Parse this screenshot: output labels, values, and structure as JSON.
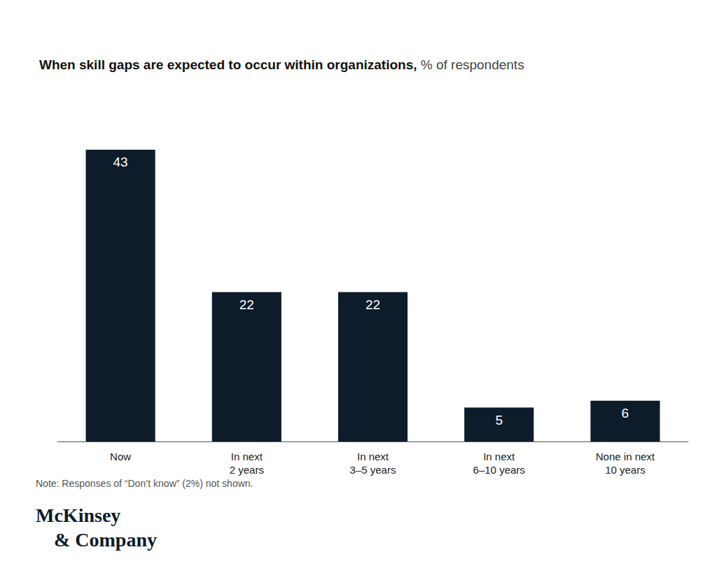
{
  "chart_data": {
    "type": "bar",
    "title": "When skill gaps are expected to occur within organizations,",
    "subtitle": "% of respondents",
    "categories": [
      "Now",
      "In next\n2 years",
      "In next\n3–5 years",
      "In next\n6–10 years",
      "None in next\n10 years"
    ],
    "values": [
      43,
      22,
      22,
      5,
      6
    ],
    "color": "#0d1b2a",
    "ylim": [
      0,
      50
    ],
    "grid": false,
    "data_labels": true,
    "tick_labels": "x",
    "annotations": [
      "Note: Responses of “Don’t know” (2%) not shown.",
      "McKinsey",
      "& Company"
    ]
  }
}
